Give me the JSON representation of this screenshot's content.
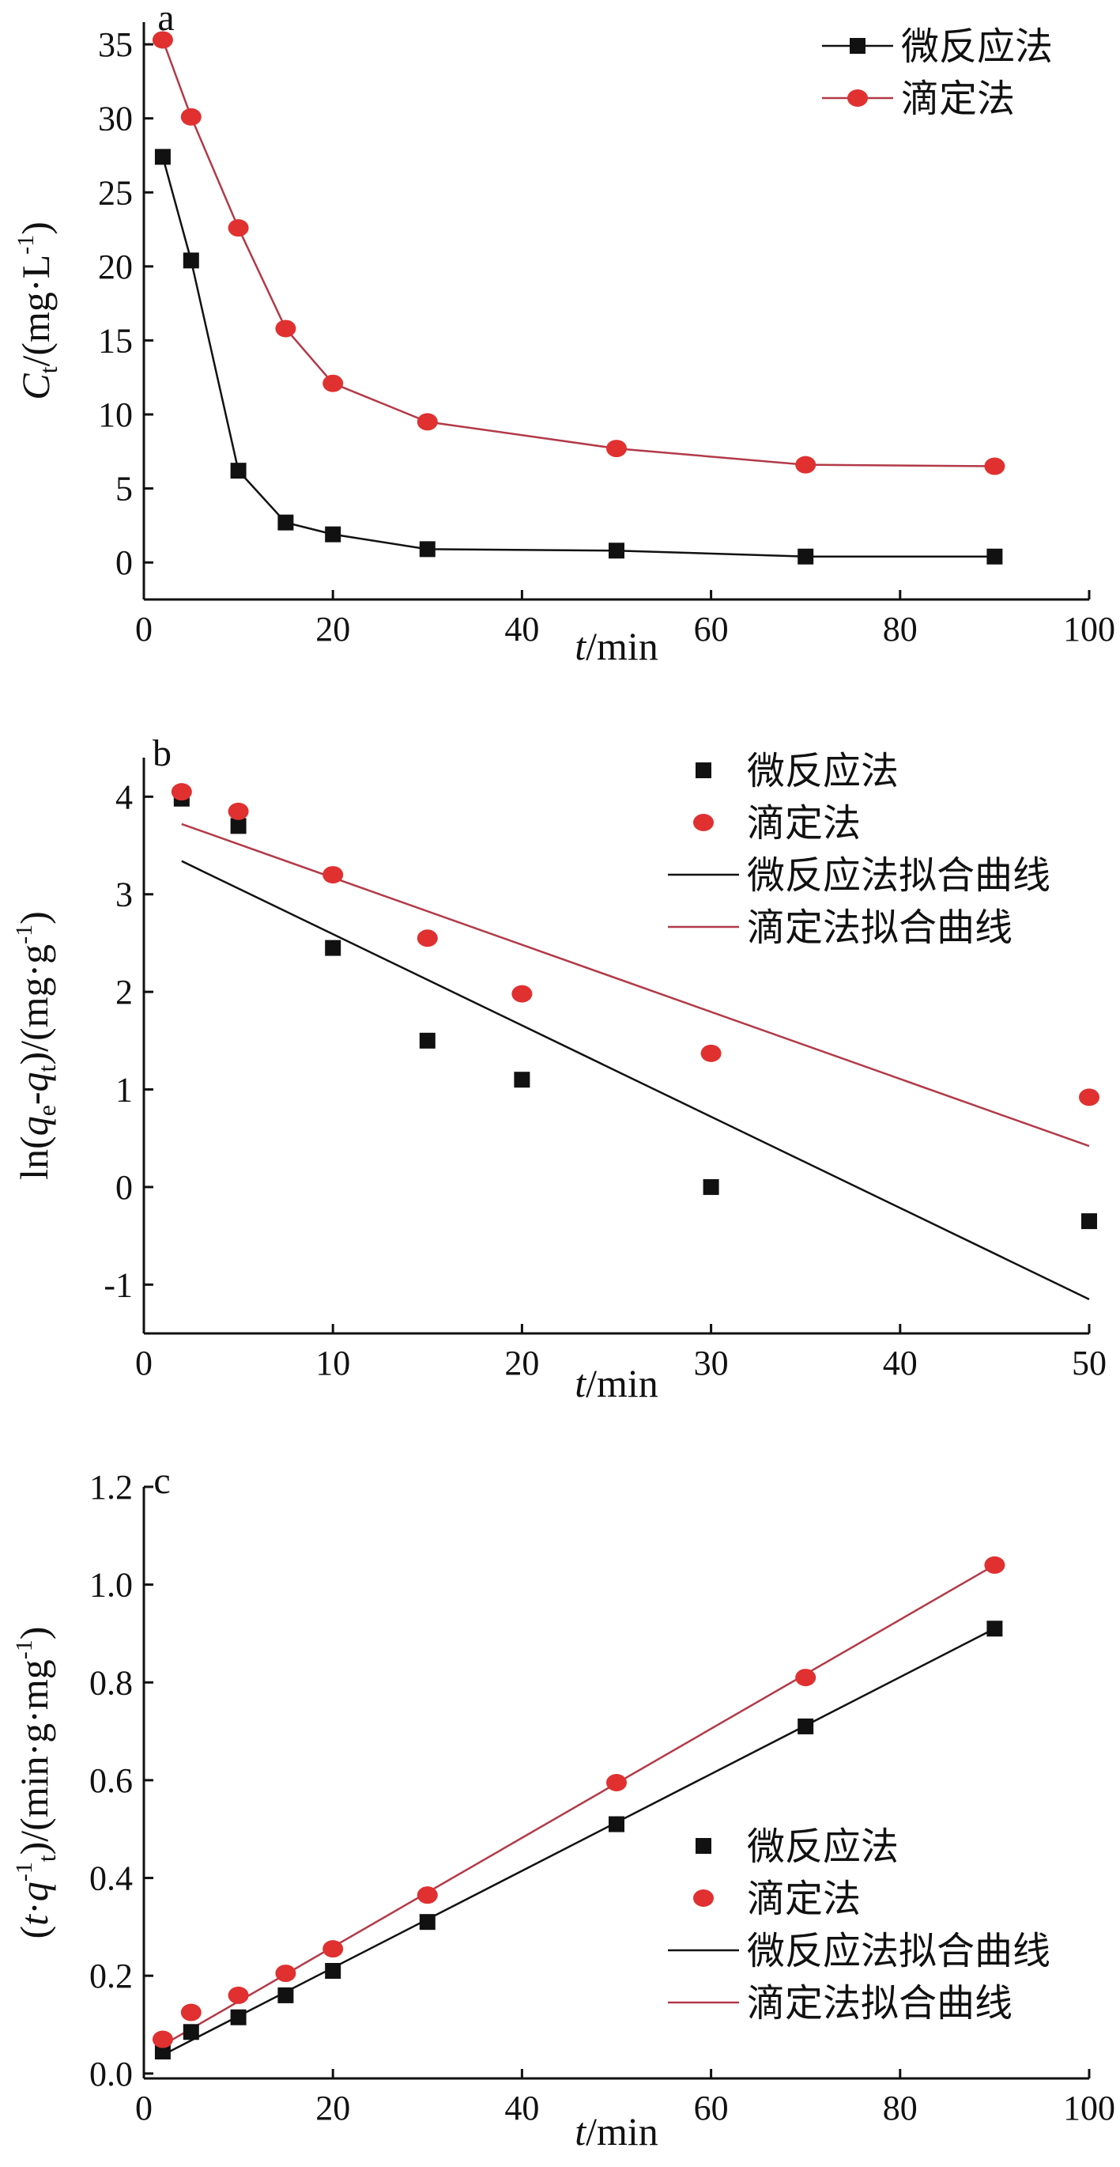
{
  "colors": {
    "micro": "#111111",
    "titr": "#e03030",
    "titr_line": "#b23a48",
    "axis": "#111111"
  },
  "chart_data": [
    {
      "type": "line",
      "panel": "a",
      "xlabel": {
        "var": "t",
        "unit": "/min"
      },
      "ylabel": {
        "main": "C",
        "sub": "t",
        "unit": "/(mg·L",
        "sup": "-1",
        "close": ")"
      },
      "xlim": [
        0,
        100
      ],
      "ylim": [
        -2.5,
        36.5
      ],
      "xticks": [
        0,
        20,
        40,
        60,
        80,
        100
      ],
      "yticks": [
        0,
        5,
        10,
        15,
        20,
        25,
        30,
        35
      ],
      "legend_position": "top-right",
      "series": [
        {
          "name": "微反应法",
          "marker": "square",
          "color_key": "micro",
          "x": [
            2,
            5,
            10,
            15,
            20,
            30,
            50,
            70,
            90
          ],
          "y": [
            27.4,
            20.4,
            6.2,
            2.7,
            1.9,
            0.9,
            0.8,
            0.4,
            0.4
          ]
        },
        {
          "name": "滴定法",
          "marker": "circle",
          "color_key": "titr",
          "x": [
            2,
            5,
            10,
            15,
            20,
            30,
            50,
            70,
            90
          ],
          "y": [
            35.3,
            30.1,
            22.6,
            15.8,
            12.1,
            9.5,
            7.7,
            6.6,
            6.5
          ]
        }
      ]
    },
    {
      "type": "scatter",
      "panel": "b",
      "xlabel": {
        "var": "t",
        "unit": "/min"
      },
      "ylabel": {
        "pre": "ln(",
        "q1": "q",
        "sub1": "e",
        "mid": "-",
        "q2": "q",
        "sub2": "t",
        "unit": ")/(mg·g",
        "sup": "-1",
        "close": ")"
      },
      "xlim": [
        0,
        50
      ],
      "ylim": [
        -1.5,
        4.4
      ],
      "xticks": [
        0,
        10,
        20,
        30,
        40,
        50
      ],
      "yticks": [
        -1,
        0,
        1,
        2,
        3,
        4
      ],
      "legend_position": "top-right",
      "series": [
        {
          "name": "微反应法",
          "marker": "square",
          "color_key": "micro",
          "x": [
            2,
            5,
            10,
            15,
            20,
            30,
            50
          ],
          "y": [
            3.98,
            3.7,
            2.45,
            1.5,
            1.1,
            0.0,
            -0.35
          ]
        },
        {
          "name": "滴定法",
          "marker": "circle",
          "color_key": "titr",
          "x": [
            2,
            5,
            10,
            15,
            20,
            30,
            50
          ],
          "y": [
            4.05,
            3.85,
            3.2,
            2.55,
            1.98,
            1.37,
            0.92
          ]
        }
      ],
      "fits": [
        {
          "name": "微反应法拟合曲线",
          "color_key": "micro",
          "x": [
            2,
            50
          ],
          "y": [
            3.34,
            -1.15
          ]
        },
        {
          "name": "滴定法拟合曲线",
          "color_key": "titr_line",
          "x": [
            2,
            50
          ],
          "y": [
            3.72,
            0.42
          ]
        }
      ]
    },
    {
      "type": "scatter",
      "panel": "c",
      "xlabel": {
        "var": "t",
        "unit": "/min"
      },
      "ylabel": {
        "pre": "(",
        "var": "t",
        "dot": "·",
        "q": "q",
        "sup1": "-1",
        "sub": "t",
        "unit": ")/(min·g·mg",
        "sup2": "-1",
        "close": ")"
      },
      "xlim": [
        0,
        100
      ],
      "ylim": [
        -0.01,
        1.2
      ],
      "xticks": [
        0,
        20,
        40,
        60,
        80,
        100
      ],
      "yticks": [
        "0.0",
        "0.2",
        "0.4",
        "0.6",
        "0.8",
        "1.0",
        "1.2"
      ],
      "legend_position": "bottom-right",
      "series": [
        {
          "name": "微反应法",
          "marker": "square",
          "color_key": "micro",
          "x": [
            2,
            5,
            10,
            15,
            20,
            30,
            50,
            70,
            90
          ],
          "y": [
            0.045,
            0.085,
            0.115,
            0.16,
            0.21,
            0.31,
            0.51,
            0.71,
            0.91
          ]
        },
        {
          "name": "滴定法",
          "marker": "circle",
          "color_key": "titr",
          "x": [
            2,
            5,
            10,
            15,
            20,
            30,
            50,
            70,
            90
          ],
          "y": [
            0.07,
            0.125,
            0.16,
            0.205,
            0.255,
            0.365,
            0.595,
            0.81,
            1.04
          ]
        }
      ],
      "fits": [
        {
          "name": "微反应法拟合曲线",
          "color_key": "micro",
          "x": [
            2,
            90
          ],
          "y": [
            0.038,
            0.91
          ]
        },
        {
          "name": "滴定法拟合曲线",
          "color_key": "titr_line",
          "x": [
            2,
            90
          ],
          "y": [
            0.058,
            1.04
          ]
        }
      ]
    }
  ]
}
